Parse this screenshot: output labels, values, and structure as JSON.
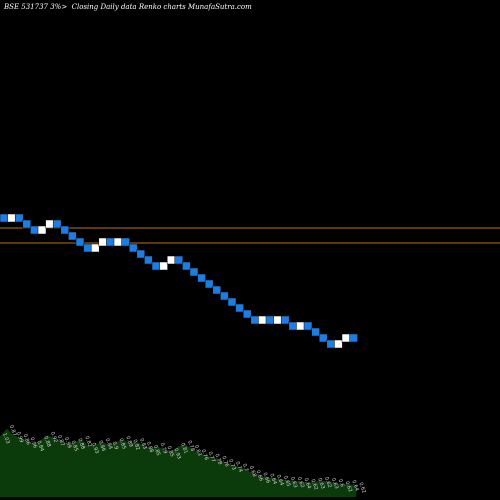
{
  "header": {
    "ticker": "BSE 531737 3%>",
    "description": "Closing Daily data  Renko  charts MunafaSutra.com"
  },
  "colors": {
    "background": "#000000",
    "up_brick": "#ffffff",
    "down_brick": "#1e7de0",
    "brick_border": "#000000",
    "reference_line": "#b8731c",
    "volume_fill": "#0b3a0b",
    "volume_label": "#d8d8d8"
  },
  "chart_data": {
    "type": "renko",
    "title": "BSE 531737 3%>  Closing Daily data  Renko  charts MunafaSutra.com",
    "bricks": [
      "down",
      "up",
      "down",
      "down",
      "down",
      "up",
      "up",
      "down",
      "down",
      "down",
      "down",
      "down",
      "up",
      "up",
      "down",
      "up",
      "down",
      "down",
      "down",
      "down",
      "down",
      "up",
      "up",
      "down",
      "down",
      "down",
      "down",
      "down",
      "down",
      "down",
      "down",
      "down",
      "down",
      "down",
      "up",
      "down",
      "up",
      "down",
      "down",
      "up",
      "down",
      "down",
      "down",
      "down",
      "up",
      "up",
      "down"
    ],
    "reference_levels": [
      1,
      2.25
    ],
    "y_unit": "brick",
    "volume": {
      "values": [
        2.75,
        3.1,
        2.8,
        2.7,
        2.55,
        2.4,
        2.6,
        2.8,
        2.65,
        2.55,
        2.4,
        2.5,
        2.6,
        2.3,
        2.4,
        2.5,
        2.35,
        2.5,
        2.6,
        2.45,
        2.5,
        2.35,
        2.2,
        2.3,
        2.15,
        2.05,
        2.3,
        2.4,
        2.2,
        2.0,
        1.9,
        1.8,
        1.7,
        1.55,
        1.45,
        1.35,
        1.25,
        1.05,
        0.95,
        0.9,
        0.85,
        0.8,
        0.75,
        0.75,
        0.7,
        0.65,
        0.7,
        0.75,
        0.7,
        0.65,
        0.55,
        0.6,
        0.5
      ],
      "labels": [
        "1.03",
        "0.87",
        "0.99",
        "0.86",
        "0.96",
        "0.84",
        "0.88",
        "0.92",
        "0.87",
        "0.99",
        "0.85",
        "0.88",
        "0.82",
        "0.93",
        "0.86",
        "0.84",
        "0.9",
        "0.85",
        "0.89",
        "0.82",
        "0.83",
        "0.88",
        "0.85",
        "0.79",
        "0.85",
        "0.93",
        "0.81",
        "0.78",
        "0.83",
        "0.76",
        "0.77",
        "0.78",
        "0.76",
        "0.73",
        "0.74",
        "0.7",
        "0.68",
        "0.66",
        "0.66",
        "0.64",
        "0.64",
        "0.65",
        "0.63",
        "0.62",
        "0.64",
        "0.62",
        "0.63",
        "0.62",
        "0.63",
        "0.6",
        "0.62",
        "0.64",
        "0.62"
      ]
    }
  }
}
